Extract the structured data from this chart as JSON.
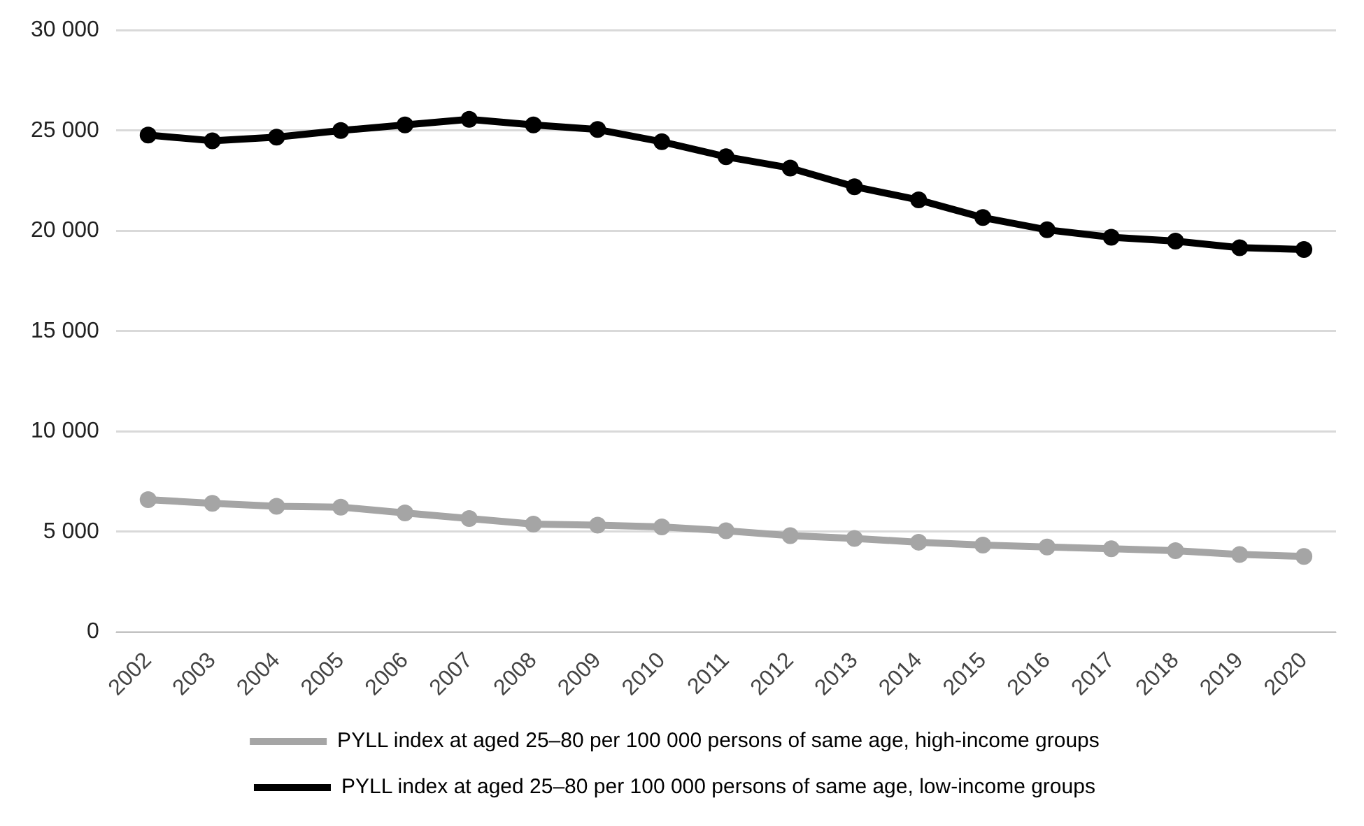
{
  "chart_data": {
    "type": "line",
    "categories": [
      "2002",
      "2003",
      "2004",
      "2005",
      "2006",
      "2007",
      "2008",
      "2009",
      "2010",
      "2011",
      "2012",
      "2013",
      "2014",
      "2015",
      "2016",
      "2017",
      "2018",
      "2019",
      "2020"
    ],
    "series": [
      {
        "name": "PYLL index at aged 25–80 per 100 000 persons of same age, high-income groups",
        "color": "#a5a5a5",
        "values": [
          6600,
          6420,
          6270,
          6230,
          5940,
          5660,
          5380,
          5330,
          5240,
          5050,
          4810,
          4670,
          4480,
          4340,
          4240,
          4150,
          4060,
          3870,
          3770
        ]
      },
      {
        "name": "PYLL index at aged 25–80 per 100 000 persons of same age, low-income groups",
        "color": "#000000",
        "values": [
          24770,
          24490,
          24670,
          25000,
          25280,
          25560,
          25280,
          25050,
          24440,
          23690,
          23130,
          22200,
          21540,
          20660,
          20050,
          19680,
          19490,
          19160,
          19070
        ]
      }
    ],
    "ylim": [
      0,
      30000
    ],
    "yticks": [
      {
        "value": 0,
        "label": "0"
      },
      {
        "value": 5000,
        "label": "5 000"
      },
      {
        "value": 10000,
        "label": "10 000"
      },
      {
        "value": 15000,
        "label": "15 000"
      },
      {
        "value": 20000,
        "label": "20 000"
      },
      {
        "value": 25000,
        "label": "25 000"
      },
      {
        "value": 30000,
        "label": "30 000"
      }
    ],
    "grid": "y",
    "legend": "bottom",
    "marker": "circle",
    "line_style": "solid"
  }
}
